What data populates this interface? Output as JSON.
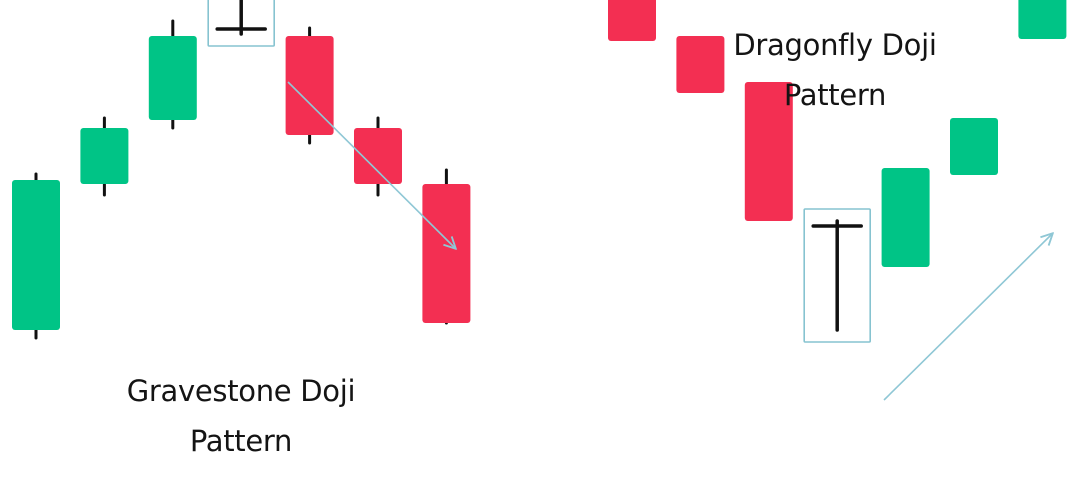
{
  "colors": {
    "bullish": "#00c486",
    "bearish": "#f32f52",
    "wick": "#111111",
    "doji_frame": "#86c3d0",
    "arrow": "#8fc7d5"
  },
  "chart_data": [
    {
      "type": "candlestick",
      "title_lines": [
        "Gravestone Doji",
        "Pattern"
      ],
      "trend_arrow": "down",
      "candles": [
        {
          "color": "bullish",
          "open": 150,
          "close": 300,
          "high": 306,
          "low": 142
        },
        {
          "color": "bullish",
          "open": 296,
          "close": 352,
          "high": 362,
          "low": 285
        },
        {
          "color": "bullish",
          "open": 360,
          "close": 444,
          "high": 459,
          "low": 352
        },
        {
          "color": "doji",
          "open": 451,
          "close": 451,
          "high": 589,
          "low": 446
        },
        {
          "color": "bearish",
          "open": 444,
          "close": 345,
          "high": 452,
          "low": 337
        },
        {
          "color": "bearish",
          "open": 352,
          "close": 296,
          "high": 362,
          "low": 285
        },
        {
          "color": "bearish",
          "open": 296,
          "close": 157,
          "high": 310,
          "low": 157
        }
      ]
    },
    {
      "type": "candlestick",
      "title_lines": [
        "Dragonfly Doji",
        "Pattern"
      ],
      "trend_arrow": "up",
      "candles": [
        {
          "color": "bearish",
          "open": 600,
          "close": 439,
          "high": 600,
          "low": 439
        },
        {
          "color": "bearish",
          "open": 444,
          "close": 387,
          "high": 444,
          "low": 387
        },
        {
          "color": "bearish",
          "open": 398,
          "close": 259,
          "high": 398,
          "low": 259
        },
        {
          "color": "doji",
          "open": 254,
          "close": 254,
          "high": 259,
          "low": 150
        },
        {
          "color": "bullish",
          "open": 213,
          "close": 312,
          "high": 312,
          "low": 213
        },
        {
          "color": "bullish",
          "open": 305,
          "close": 362,
          "high": 362,
          "low": 305
        },
        {
          "color": "bullish",
          "open": 441,
          "close": 580,
          "high": 580,
          "low": 441
        }
      ]
    }
  ]
}
